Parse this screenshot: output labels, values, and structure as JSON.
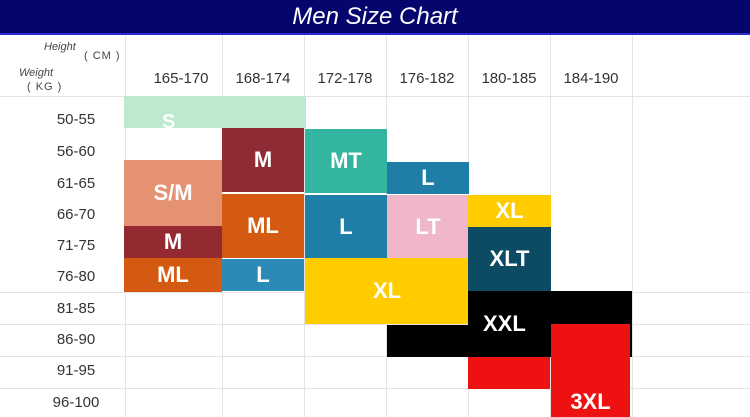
{
  "header": {
    "title": "Men Size Chart"
  },
  "axes": {
    "height_label": "Height",
    "height_unit": "( CM )",
    "weight_label": "Weight",
    "weight_unit": "( KG )"
  },
  "height_ranges": [
    "165-170",
    "168-174",
    "172-178",
    "176-182",
    "180-185",
    "184-190"
  ],
  "weight_ranges": [
    "50-55",
    "56-60",
    "61-65",
    "66-70",
    "71-75",
    "76-80",
    "81-85",
    "86-90",
    "91-95",
    "96-100"
  ],
  "colors": {
    "header_background": "#05056e",
    "S": "#bde9cf",
    "M_dark": "#8f2b34",
    "M_mid": "#932a32",
    "MT": "#33b5a0",
    "S/M": "#e49272",
    "ML": "#d45a12",
    "L_mid": "#2c8ab8",
    "L_blue": "#1f7ea8",
    "LT": "#efb7c8",
    "XL": "#ffcc00",
    "XLT": "#0d4a63",
    "XXL": "#000000",
    "3XL": "#ee1111"
  },
  "sizes": {
    "S": "S",
    "M_tall": "M",
    "MT": "MT",
    "L_top": "L",
    "S/M": "S/M",
    "ML_mid": "ML",
    "L_mid": "L",
    "XL_top": "XL",
    "LT": "LT",
    "M_low": "M",
    "XLT": "XLT",
    "ML_low": "ML",
    "L_low": "L",
    "XL_mid": "XL",
    "XXL": "XXL",
    "3XL": "3XL"
  }
}
